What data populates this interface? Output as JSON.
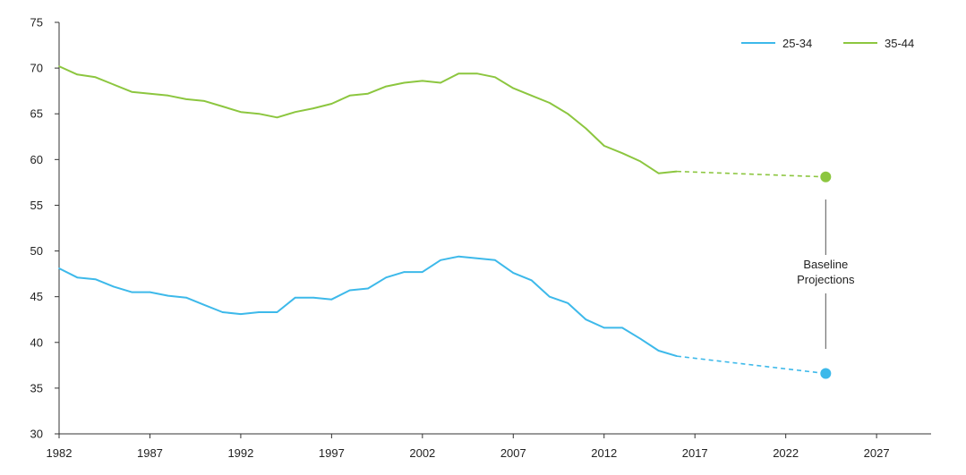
{
  "chart_data": {
    "type": "line",
    "xlim": [
      1982,
      2030
    ],
    "ylim": [
      30,
      75
    ],
    "y_ticks": [
      30,
      35,
      40,
      45,
      50,
      55,
      60,
      65,
      70,
      75
    ],
    "x_ticks": [
      1982,
      1987,
      1992,
      1997,
      2002,
      2007,
      2012,
      2017,
      2022,
      2027
    ],
    "grid": false,
    "legend_position": "top-right",
    "series": [
      {
        "name": "25-34",
        "color": "#3db9ea",
        "x": [
          1982,
          1983,
          1984,
          1985,
          1986,
          1987,
          1988,
          1989,
          1990,
          1991,
          1992,
          1993,
          1994,
          1995,
          1996,
          1997,
          1998,
          1999,
          2000,
          2001,
          2002,
          2003,
          2004,
          2005,
          2006,
          2007,
          2008,
          2009,
          2010,
          2011,
          2012,
          2013,
          2014,
          2015,
          2016
        ],
        "values": [
          48.1,
          47.1,
          46.9,
          46.1,
          45.5,
          45.5,
          45.1,
          44.9,
          44.1,
          43.3,
          43.1,
          43.3,
          43.3,
          44.9,
          44.9,
          44.7,
          45.7,
          45.9,
          47.1,
          47.7,
          47.7,
          49.0,
          49.4,
          49.2,
          49.0,
          47.6,
          46.8,
          45.0,
          44.3,
          42.5,
          41.6,
          41.6,
          40.4,
          39.1,
          38.5
        ],
        "projection": {
          "x": [
            2016,
            2024.2
          ],
          "values": [
            38.5,
            36.6
          ]
        }
      },
      {
        "name": "35-44",
        "color": "#8cc63f",
        "x": [
          1982,
          1983,
          1984,
          1985,
          1986,
          1987,
          1988,
          1989,
          1990,
          1991,
          1992,
          1993,
          1994,
          1995,
          1996,
          1997,
          1998,
          1999,
          2000,
          2001,
          2002,
          2003,
          2004,
          2005,
          2006,
          2007,
          2008,
          2009,
          2010,
          2011,
          2012,
          2013,
          2014,
          2015,
          2016
        ],
        "values": [
          70.2,
          69.3,
          69.0,
          68.2,
          67.4,
          67.2,
          67.0,
          66.6,
          66.4,
          65.8,
          65.2,
          65.0,
          64.6,
          65.2,
          65.6,
          66.1,
          67.0,
          67.2,
          68.0,
          68.4,
          68.6,
          68.4,
          69.4,
          69.4,
          69.0,
          67.8,
          67.0,
          66.2,
          65.0,
          63.4,
          61.5,
          60.7,
          59.8,
          58.5,
          58.7
        ],
        "projection": {
          "x": [
            2016,
            2024.2
          ],
          "values": [
            58.7,
            58.1
          ]
        }
      }
    ],
    "annotation": {
      "line1": "Baseline",
      "line2": "Projections",
      "x": 2024.2
    }
  }
}
